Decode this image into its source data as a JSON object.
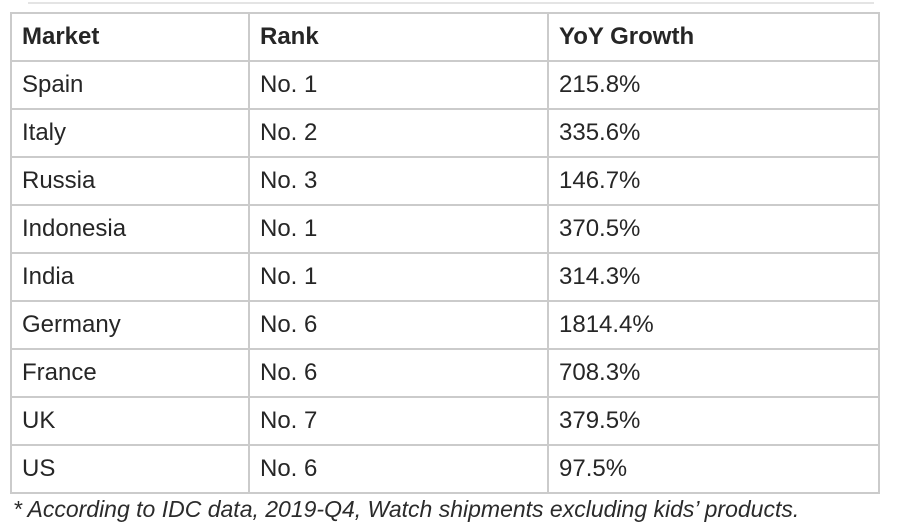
{
  "chart_data": {
    "type": "table",
    "columns": [
      "Market",
      "Rank",
      "YoY Growth"
    ],
    "rows": [
      [
        "Spain",
        "No. 1",
        "215.8%"
      ],
      [
        "Italy",
        "No. 2",
        "335.6%"
      ],
      [
        "Russia",
        "No. 3",
        "146.7%"
      ],
      [
        "Indonesia",
        "No. 1",
        "370.5%"
      ],
      [
        "India",
        "No. 1",
        "314.3%"
      ],
      [
        "Germany",
        "No. 6",
        "1814.4%"
      ],
      [
        "France",
        "No. 6",
        "708.3%"
      ],
      [
        "UK",
        "No. 7",
        "379.5%"
      ],
      [
        "US",
        "No. 6",
        "97.5%"
      ]
    ],
    "rank_values": [
      1,
      2,
      3,
      1,
      1,
      6,
      6,
      7,
      6
    ],
    "growth_values_percent": [
      215.8,
      335.6,
      146.7,
      370.5,
      314.3,
      1814.4,
      708.3,
      379.5,
      97.5
    ],
    "footnote": "* According to IDC data, 2019-Q4, Watch shipments excluding kids’ products."
  },
  "colors": {
    "border": "#cbcbcb",
    "text": "#262626",
    "background": "#ffffff"
  }
}
